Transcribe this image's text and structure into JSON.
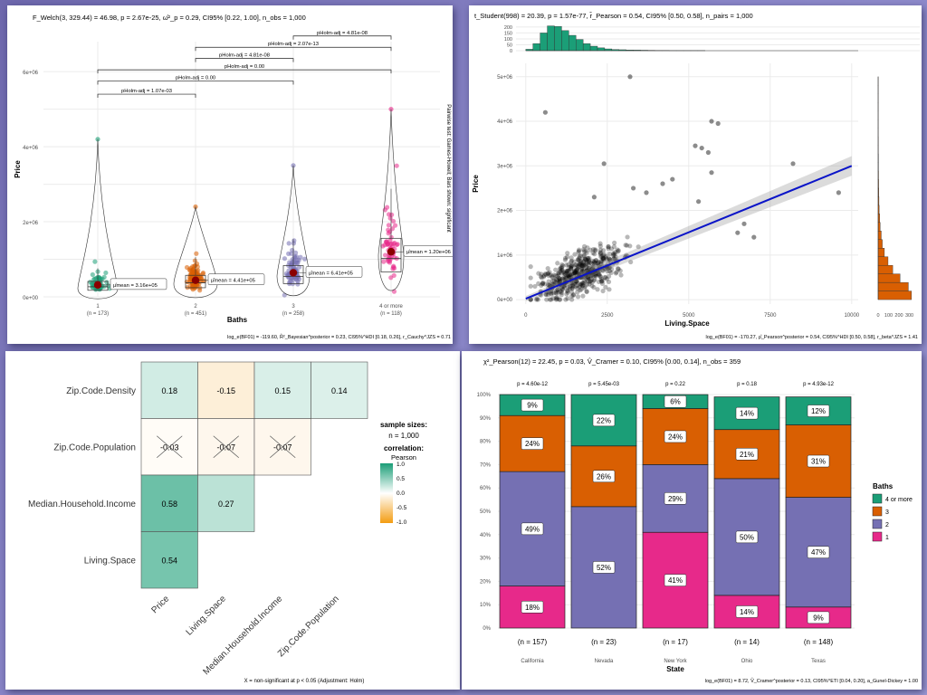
{
  "colors": {
    "baths1": "#1b9e77",
    "baths2": "#d95f02",
    "baths3": "#7570b3",
    "baths4": "#e7298a",
    "mosaic_1": "#e7298a",
    "mosaic_2": "#7570b3",
    "mosaic_3": "#d95f02",
    "mosaic_4": "#1b9e77",
    "corr_pos": "#1b9e77",
    "corr_neg": "#f39c12",
    "regline": "#0a14c8",
    "hist_top": "#1b9e77",
    "hist_right": "#d95f02",
    "mean_dot": "#8b0000"
  },
  "chart_data": [
    {
      "type": "violin-box",
      "title": "F_Welch(3, 329.44) = 46.98, p = 2.67e-25, ω̂²_p = 0.29, CI95% [0.22, 1.00], n_obs = 1,000",
      "xlabel": "Baths",
      "ylabel": "Price",
      "side_label": "Pairwise test: Games-Howell; Bars shown: significant",
      "caption": "log_e(BF01) = -119.60, R̂²_Bayesian^posterior = 0.23, CI95%^HDI [0.18, 0.26], r_Cauchy^JZS = 0.71",
      "y_ticks": [
        "0e+00",
        "2e+06",
        "4e+06",
        "6e+06"
      ],
      "ylim": [
        0,
        6800000
      ],
      "categories": [
        "1",
        "2",
        "3",
        "4 or more"
      ],
      "n_labels": [
        "(n = 173)",
        "(n = 451)",
        "(n = 258)",
        "(n = 118)"
      ],
      "means": [
        316000,
        441000,
        641000,
        1200000
      ],
      "mean_labels": [
        "μ̂mean = 3.16e+05",
        "μ̂mean = 4.41e+05",
        "μ̂mean = 6.41e+05",
        "μ̂mean = 1.20e+06"
      ],
      "max_values": [
        4200000,
        2400000,
        3500000,
        5000000
      ],
      "pairwise": [
        {
          "from": 0,
          "to": 1,
          "y": 5400000,
          "label": "pHolm-adj = 1.07e-03"
        },
        {
          "from": 0,
          "to": 2,
          "y": 5750000,
          "label": "pHolm-adj = 0.00"
        },
        {
          "from": 0,
          "to": 3,
          "y": 6050000,
          "label": "pHolm-adj = 0.00"
        },
        {
          "from": 1,
          "to": 2,
          "y": 6350000,
          "label": "pHolm-adj = 4.81e-08"
        },
        {
          "from": 1,
          "to": 3,
          "y": 6650000,
          "label": "pHolm-adj = 2.07e-13"
        },
        {
          "from": 2,
          "to": 3,
          "y": 6950000,
          "label": "pHolm-adj = 4.81e-08"
        }
      ]
    },
    {
      "type": "scatter",
      "title": "t_Student(998) = 20.39, p = 1.57e-77, r̂_Pearson = 0.54, CI95% [0.50, 0.58], n_pairs = 1,000",
      "xlabel": "Living.Space",
      "ylabel": "Price",
      "caption": "log_e(BF01) = -170.27, ρ̂_Pearson^posterior = 0.54, CI95%^HDI [0.50, 0.58], r_beta^JZS = 1.41",
      "x_ticks": [
        0,
        2500,
        5000,
        7500,
        10000
      ],
      "y_ticks": [
        "0e+00",
        "1e+06",
        "2e+06",
        "3e+06",
        "4e+06",
        "5e+06"
      ],
      "xlim": [
        -300,
        10200
      ],
      "ylim": [
        -100000,
        5300000
      ],
      "top_hist_ticks": [
        0,
        50,
        100,
        150,
        200
      ],
      "right_hist_ticks": [
        0,
        100,
        200,
        300
      ],
      "regression": {
        "x0": 0,
        "y0": 20000,
        "x1": 10000,
        "y1": 3000000
      },
      "outliers": [
        [
          600,
          4200000
        ],
        [
          3200,
          5000000
        ],
        [
          5400,
          3400000
        ],
        [
          5700,
          2850000
        ],
        [
          5600,
          3300000
        ],
        [
          5200,
          3450000
        ],
        [
          5900,
          3950000
        ],
        [
          5700,
          4000000
        ],
        [
          8200,
          3050000
        ],
        [
          4200,
          2600000
        ],
        [
          2400,
          3050000
        ],
        [
          2100,
          2300000
        ],
        [
          4500,
          2700000
        ],
        [
          3300,
          2500000
        ],
        [
          6500,
          1500000
        ],
        [
          7000,
          1400000
        ],
        [
          3700,
          2400000
        ],
        [
          5300,
          2200000
        ],
        [
          6700,
          1700000
        ],
        [
          9600,
          2400000
        ]
      ]
    },
    {
      "type": "heatmap",
      "legend_title": "sample sizes:",
      "legend_n": "n = 1,000",
      "legend_corr_title": "correlation:",
      "legend_corr_method": "Pearson",
      "legend_ticks": [
        "1.0",
        "0.5",
        "0.0",
        "-0.5",
        "-1.0"
      ],
      "caption": "X = non-significant at p < 0.05 (Adjustment: Holm)",
      "row_labels": [
        "Zip.Code.Density",
        "Zip.Code.Population",
        "Median.Household.Income",
        "Living.Space"
      ],
      "col_labels": [
        "Price",
        "Living.Space",
        "Median.Household.Income",
        "Zip.Code.Population"
      ],
      "cells": [
        {
          "row": 0,
          "col": 0,
          "value": 0.18,
          "label": "0.18",
          "nonsig": false
        },
        {
          "row": 0,
          "col": 1,
          "value": -0.15,
          "label": "-0.15",
          "nonsig": false
        },
        {
          "row": 0,
          "col": 2,
          "value": 0.15,
          "label": "0.15",
          "nonsig": false
        },
        {
          "row": 0,
          "col": 3,
          "value": 0.14,
          "label": "0.14",
          "nonsig": false
        },
        {
          "row": 1,
          "col": 0,
          "value": -0.03,
          "label": "-0.03",
          "nonsig": true
        },
        {
          "row": 1,
          "col": 1,
          "value": -0.07,
          "label": "-0.07",
          "nonsig": true
        },
        {
          "row": 1,
          "col": 2,
          "value": -0.07,
          "label": "-0.07",
          "nonsig": true
        },
        {
          "row": 2,
          "col": 0,
          "value": 0.58,
          "label": "0.58",
          "nonsig": false
        },
        {
          "row": 2,
          "col": 1,
          "value": 0.27,
          "label": "0.27",
          "nonsig": false
        },
        {
          "row": 3,
          "col": 0,
          "value": 0.54,
          "label": "0.54",
          "nonsig": false
        }
      ]
    },
    {
      "type": "stacked-bar",
      "title": "χ²_Pearson(12) = 22.45, p = 0.03, V̂_Cramer = 0.10, CI95% [0.00, 0.14], n_obs = 359",
      "xlabel": "State",
      "legend_title": "Baths",
      "legend_items": [
        "4 or more",
        "3",
        "2",
        "1"
      ],
      "caption": "log_e(BF01) = 8.72, V̂_Cramer^posterior = 0.13, CI95%^ETI [0.04, 0.20], a_Gunel-Dickey = 1.00",
      "y_ticks": [
        "0%",
        "10%",
        "20%",
        "30%",
        "40%",
        "50%",
        "60%",
        "70%",
        "80%",
        "90%",
        "100%"
      ],
      "categories": [
        "California",
        "Nevada",
        "New York",
        "Ohio",
        "Texas"
      ],
      "p_labels": [
        "p = 4.60e-12",
        "p = 5.45e-03",
        "p = 0.22",
        "p = 0.18",
        "p = 4.93e-12"
      ],
      "n_labels": [
        "(n = 157)",
        "(n = 23)",
        "(n = 17)",
        "(n = 14)",
        "(n = 148)"
      ],
      "series": [
        {
          "name": "1",
          "values": [
            18,
            0,
            41,
            14,
            9
          ]
        },
        {
          "name": "2",
          "values": [
            49,
            52,
            29,
            50,
            47
          ]
        },
        {
          "name": "3",
          "values": [
            24,
            26,
            24,
            21,
            31
          ]
        },
        {
          "name": "4 or more",
          "values": [
            9,
            22,
            6,
            14,
            12
          ]
        }
      ]
    }
  ]
}
